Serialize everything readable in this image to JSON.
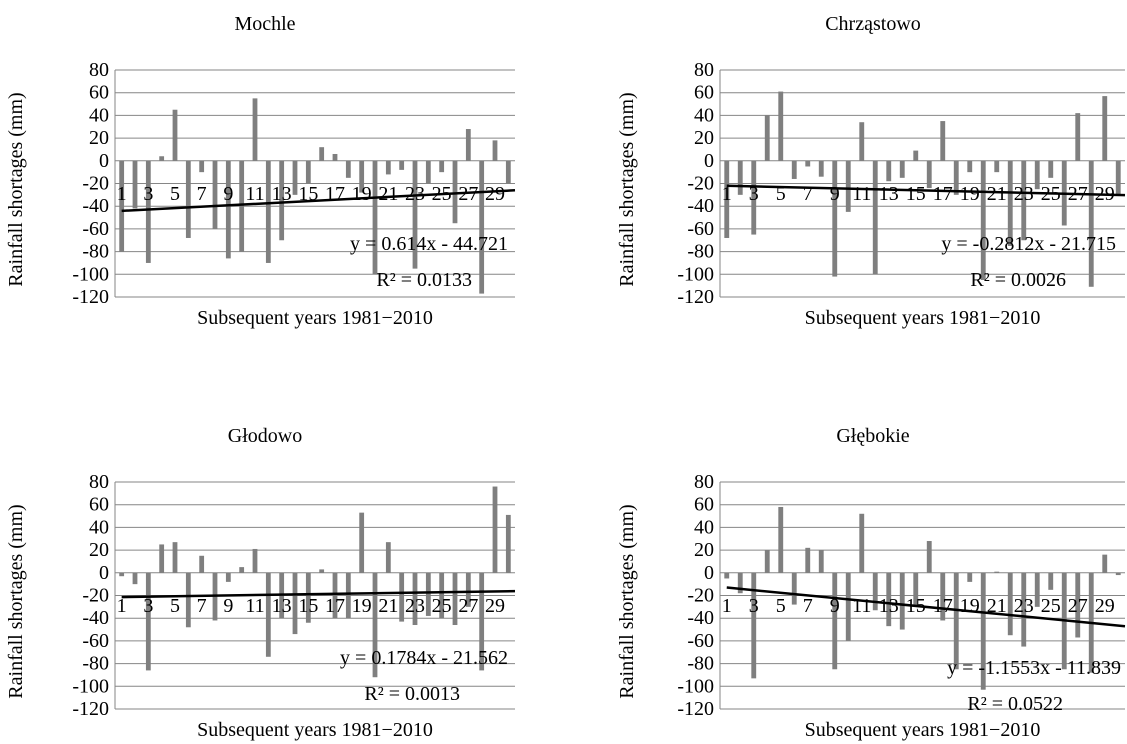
{
  "chart_data": [
    {
      "type": "bar",
      "title": "Mochle",
      "xlabel": "Subsequent years 1981−2010",
      "ylabel": "Rainfall shortages (mm)",
      "ylim": [
        -120,
        80
      ],
      "yticks": [
        80,
        60,
        40,
        20,
        0,
        -20,
        -40,
        -60,
        -80,
        -100,
        -120
      ],
      "categories": [
        "1",
        "2",
        "3",
        "4",
        "5",
        "6",
        "7",
        "8",
        "9",
        "10",
        "11",
        "12",
        "13",
        "14",
        "15",
        "16",
        "17",
        "18",
        "19",
        "20",
        "21",
        "22",
        "23",
        "24",
        "25",
        "26",
        "27",
        "28",
        "29",
        "30"
      ],
      "category_labels_shown": [
        "1",
        "3",
        "5",
        "7",
        "9",
        "11",
        "13",
        "15",
        "17",
        "19",
        "21",
        "23",
        "25",
        "27",
        "29"
      ],
      "grid": "horizontal",
      "values": [
        -80,
        -42,
        -90,
        4,
        45,
        -68,
        -10,
        -60,
        -86,
        -80,
        55,
        -90,
        -70,
        -30,
        -20,
        12,
        6,
        -15,
        -28,
        -100,
        -12,
        -8,
        -95,
        -20,
        -10,
        -55,
        28,
        -117,
        18,
        -20
      ],
      "trendline": {
        "slope": 0.614,
        "intercept": -44.721,
        "equation": "y = 0.614x - 44.721",
        "r2": "R² = 0.0133"
      },
      "colors": {
        "bar": "#7f7f7f",
        "trend": "#000000",
        "grid": "#868686"
      }
    },
    {
      "type": "bar",
      "title": "Chrząstowo",
      "xlabel": "Subsequent years 1981−2010",
      "ylabel": "Rainfall shortages (mm)",
      "ylim": [
        -120,
        80
      ],
      "yticks": [
        80,
        60,
        40,
        20,
        0,
        -20,
        -40,
        -60,
        -80,
        -100,
        -120
      ],
      "categories": [
        "1",
        "2",
        "3",
        "4",
        "5",
        "6",
        "7",
        "8",
        "9",
        "10",
        "11",
        "12",
        "13",
        "14",
        "15",
        "16",
        "17",
        "18",
        "19",
        "20",
        "21",
        "22",
        "23",
        "24",
        "25",
        "26",
        "27",
        "28",
        "29",
        "30"
      ],
      "category_labels_shown": [
        "1",
        "3",
        "5",
        "7",
        "9",
        "11",
        "13",
        "15",
        "17",
        "19",
        "21",
        "23",
        "25",
        "27",
        "29"
      ],
      "grid": "horizontal",
      "values": [
        -68,
        -30,
        -65,
        40,
        61,
        -16,
        -5,
        -14,
        -102,
        -45,
        34,
        -100,
        -18,
        -15,
        9,
        -24,
        35,
        -30,
        -10,
        -105,
        -10,
        -75,
        -70,
        -25,
        -15,
        -57,
        42,
        -111,
        57,
        -30
      ],
      "trendline": {
        "slope": -0.2812,
        "intercept": -21.715,
        "equation": "y = -0.2812x - 21.715",
        "r2": "R² = 0.0026"
      },
      "colors": {
        "bar": "#7f7f7f",
        "trend": "#000000",
        "grid": "#868686"
      }
    },
    {
      "type": "bar",
      "title": "Głodowo",
      "xlabel": "Subsequent years 1981−2010",
      "ylabel": "Rainfall shortages (mm)",
      "ylim": [
        -120,
        80
      ],
      "yticks": [
        80,
        60,
        40,
        20,
        0,
        -20,
        -40,
        -60,
        -80,
        -100,
        -120
      ],
      "categories": [
        "1",
        "2",
        "3",
        "4",
        "5",
        "6",
        "7",
        "8",
        "9",
        "10",
        "11",
        "12",
        "13",
        "14",
        "15",
        "16",
        "17",
        "18",
        "19",
        "20",
        "21",
        "22",
        "23",
        "24",
        "25",
        "26",
        "27",
        "28",
        "29",
        "30"
      ],
      "category_labels_shown": [
        "1",
        "3",
        "5",
        "7",
        "9",
        "11",
        "13",
        "15",
        "17",
        "19",
        "21",
        "23",
        "25",
        "27",
        "29"
      ],
      "grid": "horizontal",
      "values": [
        -3,
        -10,
        -86,
        25,
        27,
        -48,
        15,
        -42,
        -8,
        5,
        21,
        -74,
        -40,
        -54,
        -44,
        3,
        -40,
        -40,
        53,
        -92,
        27,
        -43,
        -46,
        -38,
        -40,
        -46,
        -30,
        -86,
        76,
        51
      ],
      "trendline": {
        "slope": 0.1784,
        "intercept": -21.562,
        "equation": "y = 0.1784x - 21.562",
        "r2": "R² = 0.0013"
      },
      "colors": {
        "bar": "#7f7f7f",
        "trend": "#000000",
        "grid": "#868686"
      }
    },
    {
      "type": "bar",
      "title": "Głębokie",
      "xlabel": "Subsequent years 1981−2010",
      "ylabel": "Rainfall shortages (mm)",
      "ylim": [
        -120,
        80
      ],
      "yticks": [
        80,
        60,
        40,
        20,
        0,
        -20,
        -40,
        -60,
        -80,
        -100,
        -120
      ],
      "categories": [
        "1",
        "2",
        "3",
        "4",
        "5",
        "6",
        "7",
        "8",
        "9",
        "10",
        "11",
        "12",
        "13",
        "14",
        "15",
        "16",
        "17",
        "18",
        "19",
        "20",
        "21",
        "22",
        "23",
        "24",
        "25",
        "26",
        "27",
        "28",
        "29",
        "30"
      ],
      "category_labels_shown": [
        "1",
        "3",
        "5",
        "7",
        "9",
        "11",
        "13",
        "15",
        "17",
        "19",
        "21",
        "23",
        "25",
        "27",
        "29"
      ],
      "grid": "horizontal",
      "values": [
        -5,
        -18,
        -93,
        20,
        58,
        -28,
        22,
        20,
        -85,
        -60,
        52,
        -33,
        -47,
        -50,
        -30,
        28,
        -42,
        -85,
        -8,
        -103,
        1,
        -55,
        -65,
        -30,
        -15,
        -85,
        -57,
        -88,
        16,
        -2
      ],
      "trendline": {
        "slope": -1.1553,
        "intercept": -11.839,
        "equation": "y = -1.1553x - 11.839",
        "r2": "R² = 0.0522"
      },
      "colors": {
        "bar": "#7f7f7f",
        "trend": "#000000",
        "grid": "#868686"
      }
    }
  ]
}
